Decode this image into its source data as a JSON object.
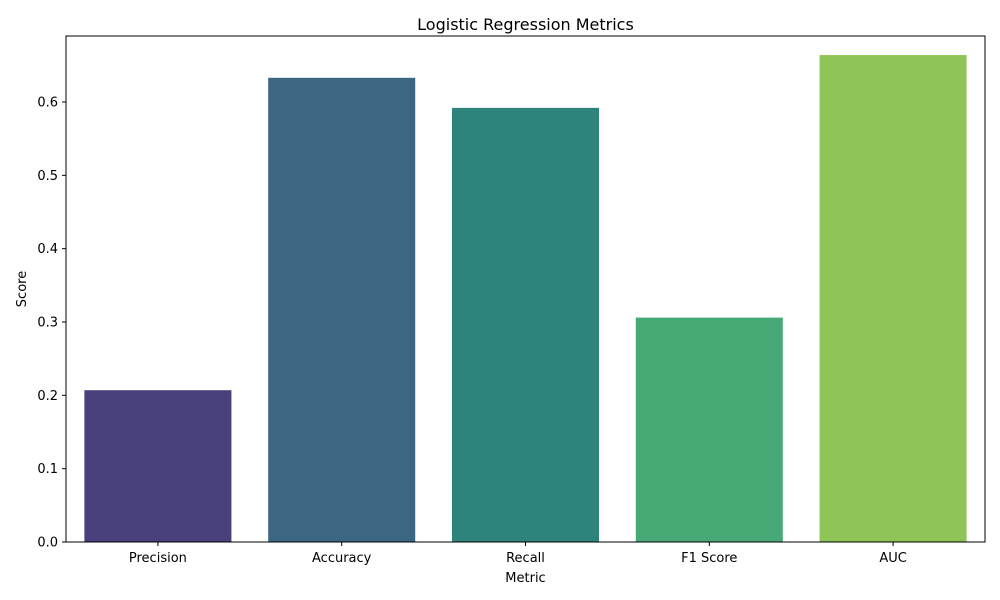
{
  "chart_data": {
    "type": "bar",
    "title": "Logistic Regression Metrics",
    "xlabel": "Metric",
    "ylabel": "Score",
    "categories": [
      "Precision",
      "Accuracy",
      "Recall",
      "F1 Score",
      "AUC"
    ],
    "values": [
      0.207,
      0.633,
      0.592,
      0.306,
      0.664
    ],
    "colors": [
      "#48417b",
      "#3d6683",
      "#2e837c",
      "#47a976",
      "#8ec556"
    ],
    "ylim": [
      0,
      0.69
    ],
    "yticks": [
      "0.0",
      "0.1",
      "0.2",
      "0.3",
      "0.4",
      "0.5",
      "0.6"
    ],
    "grid": false,
    "legend": "none"
  }
}
